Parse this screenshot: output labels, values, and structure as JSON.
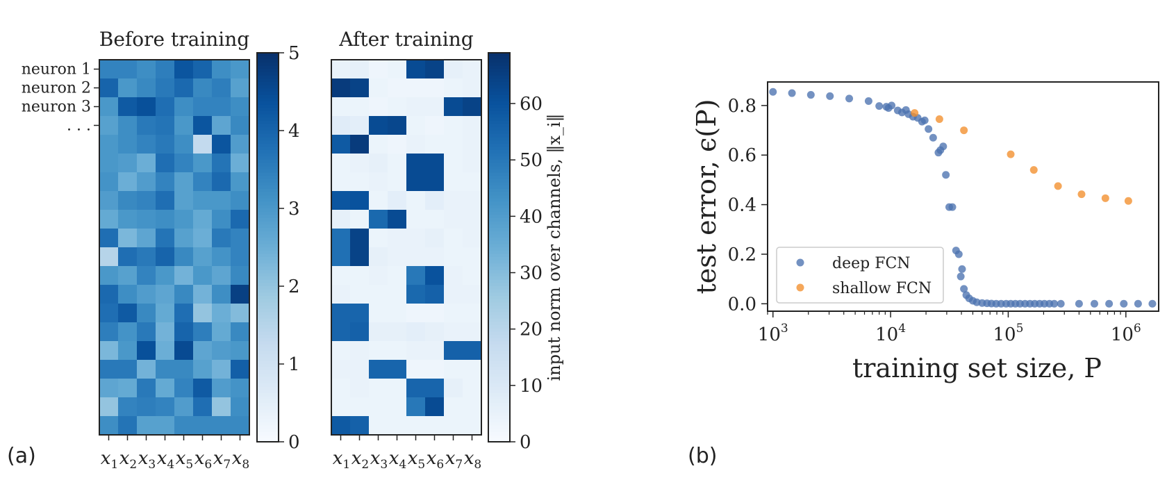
{
  "panel_labels": [
    "(a)",
    "(b)"
  ],
  "colors": {
    "cmap": [
      "#f7fbff",
      "#deebf7",
      "#c6dbef",
      "#9ecae1",
      "#6baed6",
      "#4292c6",
      "#2171b5",
      "#08519c",
      "#08306b"
    ],
    "deep": "#4c72b0",
    "shallow": "#f28e2b",
    "frame": "#222222"
  },
  "chart_data": [
    {
      "type": "heatmap",
      "title": "Before training",
      "ylabels": [
        "neuron 1",
        "neuron 2",
        "neuron 3",
        ". . ."
      ],
      "xlabels": [
        "x",
        "x",
        "x",
        "x",
        "x",
        "x",
        "x",
        "x"
      ],
      "xsubs": [
        "1",
        "2",
        "3",
        "4",
        "5",
        "6",
        "7",
        "8"
      ],
      "vmin": 0,
      "vmax": 5,
      "cbar_ticks": [
        "0",
        "1",
        "2",
        "3",
        "4",
        "5"
      ],
      "cbar_label": "",
      "values": [
        [
          3.4,
          3.4,
          3.2,
          3.5,
          4.3,
          4.0,
          3.2,
          3.0
        ],
        [
          4.0,
          3.0,
          3.3,
          3.6,
          3.9,
          3.3,
          3.5,
          2.8
        ],
        [
          3.0,
          4.2,
          4.4,
          3.8,
          3.2,
          3.4,
          3.4,
          3.2
        ],
        [
          2.8,
          3.2,
          3.6,
          3.7,
          3.0,
          4.3,
          2.7,
          3.3
        ],
        [
          3.0,
          3.2,
          3.4,
          3.6,
          3.2,
          1.3,
          4.3,
          2.9
        ],
        [
          3.0,
          2.9,
          2.5,
          3.8,
          3.4,
          3.0,
          3.7,
          2.5
        ],
        [
          3.1,
          2.5,
          2.9,
          3.4,
          2.8,
          3.4,
          3.9,
          3.0
        ],
        [
          2.9,
          3.3,
          3.4,
          3.8,
          2.8,
          3.0,
          3.0,
          3.2
        ],
        [
          2.6,
          3.0,
          3.1,
          3.2,
          3.0,
          2.6,
          3.2,
          3.9
        ],
        [
          3.8,
          2.3,
          2.7,
          3.7,
          2.8,
          2.5,
          3.6,
          3.4
        ],
        [
          1.5,
          3.8,
          3.6,
          4.0,
          3.3,
          2.8,
          3.1,
          3.4
        ],
        [
          3.0,
          2.8,
          3.4,
          3.0,
          2.4,
          3.0,
          2.7,
          3.3
        ],
        [
          3.9,
          3.2,
          2.9,
          2.7,
          3.3,
          2.4,
          3.2,
          4.7
        ],
        [
          3.8,
          4.2,
          3.3,
          2.6,
          3.8,
          2.0,
          2.5,
          2.2
        ],
        [
          3.5,
          3.1,
          3.6,
          2.4,
          4.0,
          3.5,
          2.6,
          3.3
        ],
        [
          2.3,
          3.0,
          4.4,
          2.5,
          4.5,
          2.7,
          2.9,
          3.0
        ],
        [
          3.6,
          3.6,
          2.4,
          3.3,
          3.3,
          2.8,
          2.4,
          4.1
        ],
        [
          2.7,
          2.6,
          3.6,
          2.6,
          3.4,
          4.2,
          2.9,
          3.1
        ],
        [
          2.0,
          3.4,
          3.5,
          3.4,
          2.9,
          3.8,
          2.0,
          3.2
        ],
        [
          3.2,
          3.7,
          2.8,
          2.8,
          3.3,
          3.3,
          3.3,
          3.3
        ]
      ]
    },
    {
      "type": "heatmap",
      "title": "After training",
      "ylabels": [],
      "xlabels": [
        "x",
        "x",
        "x",
        "x",
        "x",
        "x",
        "x",
        "x"
      ],
      "xsubs": [
        "1",
        "2",
        "3",
        "4",
        "5",
        "6",
        "7",
        "8"
      ],
      "vmin": 0,
      "vmax": 69,
      "cbar_ticks": [
        "0",
        "10",
        "20",
        "30",
        "40",
        "50",
        "60"
      ],
      "cbar_label": "input norm over channels, ‖x_i‖",
      "values": [
        [
          5,
          6,
          3,
          4,
          62,
          64,
          6,
          5
        ],
        [
          66,
          64,
          4,
          3,
          3,
          3,
          4,
          5
        ],
        [
          4,
          4,
          3,
          4,
          5,
          5,
          62,
          64
        ],
        [
          8,
          7,
          62,
          63,
          4,
          3,
          4,
          5
        ],
        [
          58,
          66,
          4,
          3,
          5,
          4,
          4,
          5
        ],
        [
          4,
          5,
          6,
          4,
          62,
          62,
          4,
          5
        ],
        [
          4,
          4,
          5,
          4,
          62,
          62,
          4,
          4
        ],
        [
          59,
          60,
          4,
          7,
          4,
          7,
          5,
          5
        ],
        [
          6,
          4,
          54,
          62,
          4,
          4,
          5,
          5
        ],
        [
          52,
          64,
          4,
          5,
          5,
          6,
          4,
          5
        ],
        [
          52,
          64,
          6,
          5,
          5,
          5,
          4,
          4
        ],
        [
          4,
          4,
          5,
          4,
          50,
          60,
          5,
          4
        ],
        [
          5,
          4,
          4,
          4,
          54,
          56,
          5,
          5
        ],
        [
          55,
          55,
          4,
          4,
          3,
          3,
          4,
          4
        ],
        [
          55,
          56,
          6,
          6,
          7,
          6,
          5,
          5
        ],
        [
          4,
          5,
          4,
          4,
          5,
          5,
          56,
          56
        ],
        [
          5,
          5,
          55,
          55,
          3,
          3,
          4,
          4
        ],
        [
          4,
          5,
          4,
          4,
          55,
          55,
          6,
          4
        ],
        [
          4,
          4,
          4,
          4,
          50,
          62,
          4,
          4
        ],
        [
          58,
          56,
          4,
          4,
          4,
          4,
          4,
          4
        ]
      ]
    },
    {
      "type": "scatter",
      "xscale": "log",
      "xlim": [
        900,
        1900000
      ],
      "ylim": [
        -0.03,
        0.895
      ],
      "xtick_values": [
        1000,
        10000,
        100000,
        1000000
      ],
      "xtick_labels": [
        "3",
        "4",
        "5",
        "6"
      ],
      "xtick_base": "10",
      "ytick_values": [
        0.0,
        0.2,
        0.4,
        0.6,
        0.8
      ],
      "ytick_labels": [
        "0.0",
        "0.2",
        "0.4",
        "0.6",
        "0.8"
      ],
      "xlabel": "training set size, P",
      "ylabel": "test error, ϵ(P)",
      "legend_position": "lower-left",
      "series": [
        {
          "name": "deep FCN",
          "points": [
            [
              1000,
              0.855
            ],
            [
              1450,
              0.85
            ],
            [
              2100,
              0.843
            ],
            [
              3050,
              0.838
            ],
            [
              4450,
              0.828
            ],
            [
              6500,
              0.818
            ],
            [
              8000,
              0.798
            ],
            [
              9200,
              0.795
            ],
            [
              9600,
              0.79
            ],
            [
              10200,
              0.8
            ],
            [
              11500,
              0.78
            ],
            [
              12500,
              0.772
            ],
            [
              13500,
              0.782
            ],
            [
              14200,
              0.765
            ],
            [
              15500,
              0.755
            ],
            [
              17000,
              0.75
            ],
            [
              18500,
              0.735
            ],
            [
              19500,
              0.74
            ],
            [
              21000,
              0.705
            ],
            [
              23000,
              0.67
            ],
            [
              25500,
              0.61
            ],
            [
              26500,
              0.62
            ],
            [
              28000,
              0.635
            ],
            [
              29500,
              0.52
            ],
            [
              31500,
              0.39
            ],
            [
              33500,
              0.39
            ],
            [
              36000,
              0.215
            ],
            [
              38000,
              0.2
            ],
            [
              39500,
              0.11
            ],
            [
              40500,
              0.14
            ],
            [
              42000,
              0.06
            ],
            [
              44000,
              0.035
            ],
            [
              46500,
              0.022
            ],
            [
              50000,
              0.012
            ],
            [
              54000,
              0.006
            ],
            [
              60000,
              0.003
            ],
            [
              66000,
              0.002
            ],
            [
              72000,
              0.001
            ],
            [
              79000,
              0.0
            ],
            [
              87000,
              0.0
            ],
            [
              96000,
              0.0
            ],
            [
              105000,
              0.0
            ],
            [
              115000,
              0.0
            ],
            [
              126000,
              0.0
            ],
            [
              139000,
              0.0
            ],
            [
              153000,
              0.0
            ],
            [
              168000,
              0.0
            ],
            [
              185000,
              0.0
            ],
            [
              203000,
              0.0
            ],
            [
              224000,
              0.0
            ],
            [
              246000,
              0.0
            ],
            [
              280000,
              0.0
            ],
            [
              400000,
              0.0
            ],
            [
              540000,
              0.0
            ],
            [
              720000,
              0.0
            ],
            [
              960000,
              0.0
            ],
            [
              1270000,
              0.0
            ],
            [
              1680000,
              0.0
            ]
          ]
        },
        {
          "name": "shallow FCN",
          "points": [
            [
              16000,
              0.77
            ],
            [
              26000,
              0.745
            ],
            [
              42000,
              0.7
            ],
            [
              105000,
              0.603
            ],
            [
              165000,
              0.54
            ],
            [
              265000,
              0.475
            ],
            [
              420000,
              0.442
            ],
            [
              670000,
              0.426
            ],
            [
              1050000,
              0.415
            ]
          ]
        }
      ]
    }
  ]
}
